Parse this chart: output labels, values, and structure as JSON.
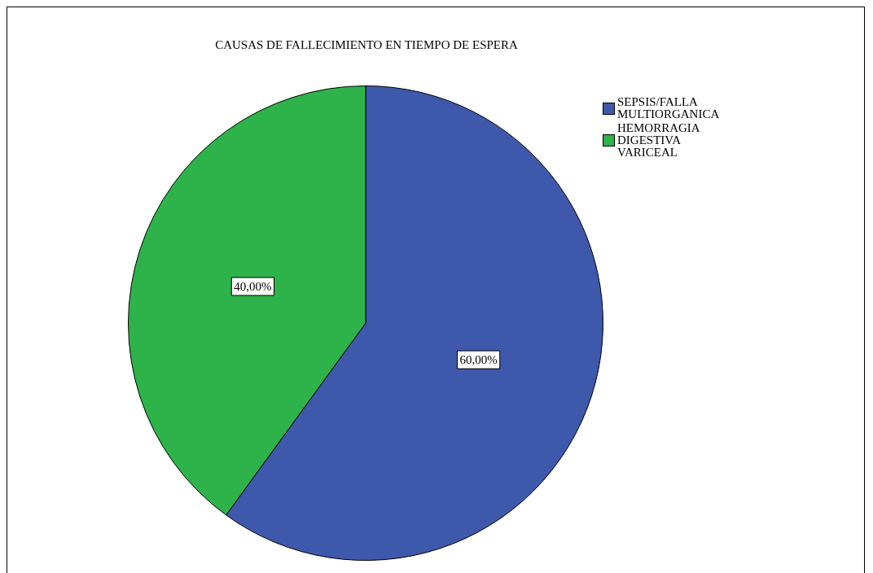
{
  "chart_data": {
    "type": "pie",
    "title": "CAUSAS DE FALLECIMIENTO EN TIEMPO DE ESPERA",
    "categories": [
      "SEPSIS/FALLA MULTIORGANICA",
      "HEMORRAGIA DIGESTIVA VARICEAL"
    ],
    "values": [
      60,
      40
    ],
    "colors": [
      "#3e58ac",
      "#2db34a"
    ],
    "value_labels": [
      "60,00%",
      "40,00%"
    ],
    "legend": "top right"
  }
}
